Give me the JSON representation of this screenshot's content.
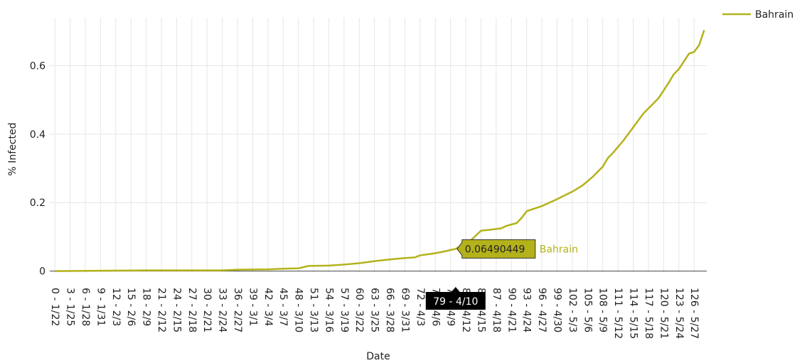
{
  "chart_data": {
    "type": "line",
    "y_label": "% Infected",
    "x_label": "Date",
    "xlim": [
      -1,
      128.5
    ],
    "ylim": [
      -0.005,
      0.74
    ],
    "yticks": [
      0,
      0.2,
      0.4,
      0.6
    ],
    "xticks": [
      {
        "value": 0,
        "label": "0 - 1/22"
      },
      {
        "value": 3,
        "label": "3 - 1/25"
      },
      {
        "value": 6,
        "label": "6 - 1/28"
      },
      {
        "value": 9,
        "label": "9 - 1/31"
      },
      {
        "value": 12,
        "label": "12 - 2/3"
      },
      {
        "value": 15,
        "label": "15 - 2/6"
      },
      {
        "value": 18,
        "label": "18 - 2/9"
      },
      {
        "value": 21,
        "label": "21 - 2/12"
      },
      {
        "value": 24,
        "label": "24 - 2/15"
      },
      {
        "value": 27,
        "label": "27 - 2/18"
      },
      {
        "value": 30,
        "label": "30 - 2/21"
      },
      {
        "value": 33,
        "label": "33 - 2/24"
      },
      {
        "value": 36,
        "label": "36 - 2/27"
      },
      {
        "value": 39,
        "label": "39 - 3/1"
      },
      {
        "value": 42,
        "label": "42 - 3/4"
      },
      {
        "value": 45,
        "label": "45 - 3/7"
      },
      {
        "value": 48,
        "label": "48 - 3/10"
      },
      {
        "value": 51,
        "label": "51 - 3/13"
      },
      {
        "value": 54,
        "label": "54 - 3/16"
      },
      {
        "value": 57,
        "label": "57 - 3/19"
      },
      {
        "value": 60,
        "label": "60 - 3/22"
      },
      {
        "value": 63,
        "label": "63 - 3/25"
      },
      {
        "value": 66,
        "label": "66 - 3/28"
      },
      {
        "value": 69,
        "label": "69 - 3/31"
      },
      {
        "value": 72,
        "label": "72 - 4/3"
      },
      {
        "value": 75,
        "label": "75 - 4/6"
      },
      {
        "value": 78,
        "label": "78 - 4/9"
      },
      {
        "value": 81,
        "label": "81 - 4/12"
      },
      {
        "value": 84,
        "label": "84 - 4/15"
      },
      {
        "value": 87,
        "label": "87 - 4/18"
      },
      {
        "value": 90,
        "label": "90 - 4/21"
      },
      {
        "value": 93,
        "label": "93 - 4/24"
      },
      {
        "value": 96,
        "label": "96 - 4/27"
      },
      {
        "value": 99,
        "label": "99 - 4/30"
      },
      {
        "value": 102,
        "label": "102 - 5/3"
      },
      {
        "value": 105,
        "label": "105 - 5/6"
      },
      {
        "value": 108,
        "label": "108 - 5/9"
      },
      {
        "value": 111,
        "label": "111 - 5/12"
      },
      {
        "value": 114,
        "label": "114 - 5/15"
      },
      {
        "value": 117,
        "label": "117 - 5/18"
      },
      {
        "value": 120,
        "label": "120 - 5/21"
      },
      {
        "value": 123,
        "label": "123 - 5/24"
      },
      {
        "value": 126,
        "label": "126 - 5/27"
      }
    ],
    "grid": true,
    "legend": "top-right",
    "x": [
      0,
      9,
      18,
      27,
      33,
      36,
      42,
      45,
      48,
      50,
      54,
      57,
      60,
      63,
      66,
      69,
      71,
      72,
      75,
      77,
      79,
      82,
      84,
      86,
      88,
      89,
      91,
      92,
      93,
      96,
      99,
      102,
      104,
      106,
      108,
      109,
      110,
      112,
      114,
      116,
      118,
      119,
      121,
      122,
      123,
      125,
      126,
      127,
      128
    ],
    "series": [
      {
        "name": "Bahrain",
        "color": "#b4b21a",
        "values": [
          0,
          0.001,
          0.002,
          0.002,
          0.002,
          0.004,
          0.005,
          0.007,
          0.008,
          0.015,
          0.016,
          0.019,
          0.023,
          0.029,
          0.034,
          0.038,
          0.04,
          0.046,
          0.052,
          0.058,
          0.06490449,
          0.09,
          0.118,
          0.121,
          0.125,
          0.132,
          0.14,
          0.155,
          0.175,
          0.19,
          0.21,
          0.232,
          0.25,
          0.275,
          0.305,
          0.33,
          0.345,
          0.38,
          0.42,
          0.46,
          0.49,
          0.505,
          0.55,
          0.575,
          0.59,
          0.635,
          0.64,
          0.66,
          0.704
        ]
      }
    ],
    "hover": {
      "x": 79,
      "x_label": "79 - 4/10",
      "value": 0.06490449
    }
  }
}
